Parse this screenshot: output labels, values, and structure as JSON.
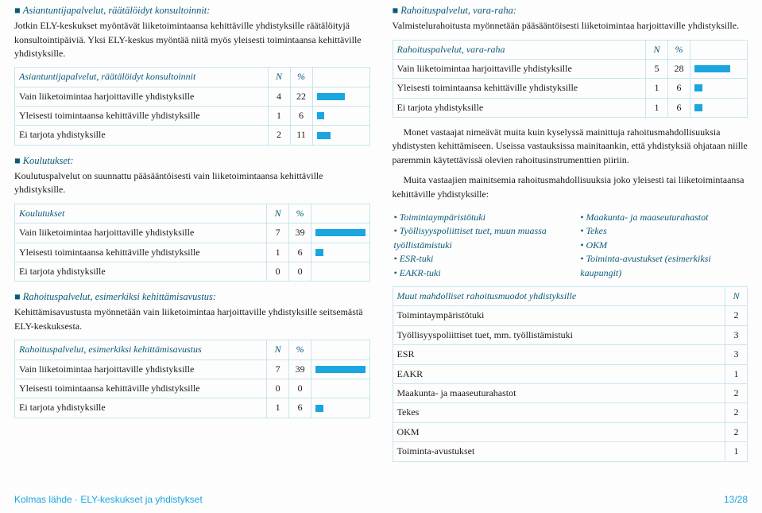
{
  "left": {
    "s1": {
      "head": "Asiantuntijapalvelut, räätälöidyt konsultoinnit:",
      "body": "Jotkin ELY-keskukset myöntävät liiketoimintaansa kehittäville yhdistyksille räätälöityjä konsultointipäiviä. Yksi ELY-keskus myöntää niitä myös yleisesti toimintaansa kehittäville yhdistyksille."
    },
    "t1": {
      "title": "Asiantuntijapalvelut, räätälöidyt konsultoinnit",
      "rows": [
        {
          "label": "Vain liiketoimintaa harjoittaville yhdistyksille",
          "n": 4,
          "pct": 22
        },
        {
          "label": "Yleisesti toimintaansa kehittäville yhdistyksille",
          "n": 1,
          "pct": 6
        },
        {
          "label": "Ei tarjota yhdistyksille",
          "n": 2,
          "pct": 11
        }
      ]
    },
    "s2": {
      "head": "Koulutukset:",
      "body": "Koulutuspalvelut on suunnattu pääsääntöisesti vain liiketoimintaansa kehittäville yhdistyksille."
    },
    "t2": {
      "title": "Koulutukset",
      "rows": [
        {
          "label": "Vain liiketoimintaa harjoittaville yhdistyksille",
          "n": 7,
          "pct": 39
        },
        {
          "label": "Yleisesti toimintaansa kehittäville yhdistyksille",
          "n": 1,
          "pct": 6
        },
        {
          "label": "Ei tarjota yhdistyksille",
          "n": 0,
          "pct": 0
        }
      ]
    },
    "s3": {
      "head": "Rahoituspalvelut, esimerkiksi kehittämisavustus:",
      "body": "Kehittämisavustusta myönnetään vain liiketoimintaa harjoittaville yhdistyksille seitsemästä ELY-keskuksesta."
    },
    "t3": {
      "title": "Rahoituspalvelut, esimerkiksi kehittämisavustus",
      "rows": [
        {
          "label": "Vain liiketoimintaa harjoittaville yhdistyksille",
          "n": 7,
          "pct": 39
        },
        {
          "label": "Yleisesti toimintaansa kehittäville yhdistyksille",
          "n": 0,
          "pct": 0
        },
        {
          "label": "Ei tarjota yhdistyksille",
          "n": 1,
          "pct": 6
        }
      ]
    }
  },
  "right": {
    "s1": {
      "head": "Rahoituspalvelut, vara-raha:",
      "body": "Valmistelurahoitusta myönnetään pääsääntöisesti liiketoimintaa harjoittaville yhdistyksille."
    },
    "t1": {
      "title": "Rahoituspalvelut, vara-raha",
      "rows": [
        {
          "label": "Vain liiketoimintaa harjoittaville yhdistyksille",
          "n": 5,
          "pct": 28
        },
        {
          "label": "Yleisesti toimintaansa kehittäville yhdistyksille",
          "n": 1,
          "pct": 6
        },
        {
          "label": "Ei tarjota yhdistyksille",
          "n": 1,
          "pct": 6
        }
      ]
    },
    "p2a": "Monet vastaajat nimeävät muita kuin kyselyssä mainittuja rahoitusmahdollisuuksia yhdistysten kehittämiseen. Useissa vastauksissa mainitaankin, että yhdistyksiä ohjataan niille paremmin käytettävissä olevien rahoitusinstrumenttien piiriin.",
    "p2b": "Muita vastaajien mainitsemia rahoitusmahdollisuuksia joko yleisesti tai liiketoimintaansa kehittäville yhdistyksille:",
    "list_left": [
      "Toimintaympäristötuki",
      "Työllisyyspoliittiset tuet, muun muassa työllistämistuki",
      "ESR-tuki",
      "EAKR-tuki"
    ],
    "list_right": [
      "Maakunta- ja maaseuturahastot",
      "Tekes",
      "OKM",
      "Toiminta-avustukset (esimerkiksi kaupungit)"
    ],
    "t2": {
      "title": "Muut mahdolliset rahoitusmuodot yhdistyksille",
      "rows": [
        {
          "label": "Toimintaympäristötuki",
          "n": 2
        },
        {
          "label": "Työllisyyspoliittiset tuet, mm. työllistämistuki",
          "n": 3
        },
        {
          "label": "ESR",
          "n": 3
        },
        {
          "label": "EAKR",
          "n": 1
        },
        {
          "label": "Maakunta- ja maaseuturahastot",
          "n": 2
        },
        {
          "label": "Tekes",
          "n": 2
        },
        {
          "label": "OKM",
          "n": 2
        },
        {
          "label": "Toiminta-avustukset",
          "n": 1
        }
      ]
    }
  },
  "footer": {
    "left": "Kolmas lähde · ELY-keskukset ja yhdistykset",
    "right": "13/28"
  },
  "headers": {
    "n": "N",
    "pct": "%"
  },
  "bar": {
    "max_pct": 100,
    "bar_width_factor": 1.6,
    "color": "#1aa6e0"
  }
}
